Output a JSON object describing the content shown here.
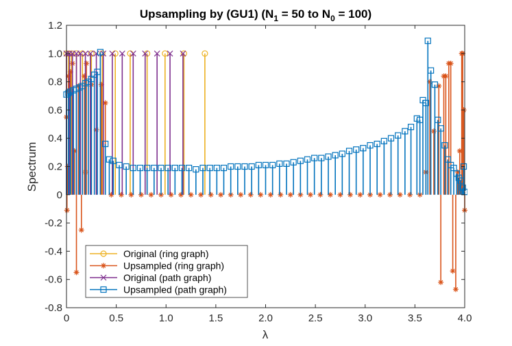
{
  "chart_data": {
    "type": "stem",
    "title": "Upsampling by (GU1) (N",
    "title_sub1": "1",
    "title_mid": " = 50 to N",
    "title_sub2": "0",
    "title_end": " = 100)",
    "xlabel": "λ",
    "ylabel": "Spectrum",
    "xlim": [
      0,
      4
    ],
    "ylim": [
      -0.8,
      1.2
    ],
    "xticks": [
      0,
      0.5,
      1,
      1.5,
      2,
      2.5,
      3,
      3.5,
      4
    ],
    "yticks": [
      -0.8,
      -0.6,
      -0.4,
      -0.2,
      0,
      0.2,
      0.4,
      0.6,
      0.8,
      1.0,
      1.2
    ],
    "xtick_labels": [
      "0",
      "0.5",
      "1.0",
      "1.5",
      "2.0",
      "2.5",
      "3.0",
      "3.5",
      "4.0"
    ],
    "ytick_labels": [
      "-0.8",
      "-0.6",
      "-0.4",
      "-0.2",
      "0",
      "0.2",
      "0.4",
      "0.6",
      "0.8",
      "1.0",
      "1.2"
    ],
    "legend_position": "bottom-left",
    "series": [
      {
        "name": "Original (ring graph)",
        "color": "#EDB120",
        "marker": "circle",
        "points": [
          [
            0.0,
            1.0
          ],
          [
            0.02,
            1.0
          ],
          [
            0.05,
            1.0
          ],
          [
            0.1,
            1.0
          ],
          [
            0.16,
            1.0
          ],
          [
            0.25,
            1.0
          ],
          [
            0.36,
            1.0
          ],
          [
            0.49,
            1.0
          ],
          [
            0.64,
            1.0
          ],
          [
            0.81,
            1.0
          ],
          [
            0.99,
            1.0
          ],
          [
            1.18,
            1.0
          ],
          [
            1.39,
            1.0
          ]
        ]
      },
      {
        "name": "Upsampled (ring graph)",
        "color": "#D95319",
        "marker": "asterisk",
        "points": [
          [
            0.0,
            0.55
          ],
          [
            0.005,
            -0.11
          ],
          [
            0.012,
            0.2
          ],
          [
            0.02,
            0.84
          ],
          [
            0.04,
            0.87
          ],
          [
            0.06,
            0.93
          ],
          [
            0.08,
            0.31
          ],
          [
            0.1,
            -0.55
          ],
          [
            0.12,
            0.77
          ],
          [
            0.15,
            -0.25
          ],
          [
            0.18,
            0.84
          ],
          [
            0.2,
            0.93
          ],
          [
            0.19,
            0.16
          ],
          [
            0.25,
            0.78
          ],
          [
            0.3,
            0.46
          ],
          [
            0.35,
            0.78
          ],
          [
            0.39,
            0.65
          ],
          [
            0.45,
            0.0
          ],
          [
            0.55,
            0.0
          ],
          [
            0.65,
            0.0
          ],
          [
            0.75,
            0.0
          ],
          [
            0.85,
            0.0
          ],
          [
            0.95,
            0.0
          ],
          [
            1.05,
            0.0
          ],
          [
            1.15,
            0.0
          ],
          [
            1.25,
            0.0
          ],
          [
            1.35,
            0.0
          ],
          [
            1.45,
            0.0
          ],
          [
            1.55,
            0.0
          ],
          [
            1.65,
            0.0
          ],
          [
            1.75,
            0.0
          ],
          [
            1.85,
            0.0
          ],
          [
            1.95,
            0.0
          ],
          [
            2.05,
            0.0
          ],
          [
            2.15,
            0.0
          ],
          [
            2.25,
            0.0
          ],
          [
            2.35,
            0.0
          ],
          [
            2.45,
            0.0
          ],
          [
            2.55,
            0.0
          ],
          [
            2.65,
            0.0
          ],
          [
            2.75,
            0.0
          ],
          [
            2.85,
            0.0
          ],
          [
            2.95,
            0.0
          ],
          [
            3.05,
            0.0
          ],
          [
            3.15,
            0.0
          ],
          [
            3.25,
            0.0
          ],
          [
            3.35,
            0.0
          ],
          [
            3.45,
            0.0
          ],
          [
            3.55,
            0.0
          ],
          [
            3.61,
            0.16
          ],
          [
            3.65,
            0.8
          ],
          [
            3.69,
            0.45
          ],
          [
            3.74,
            0.77
          ],
          [
            3.76,
            -0.62
          ],
          [
            3.79,
            0.84
          ],
          [
            3.81,
            0.84
          ],
          [
            3.84,
            0.93
          ],
          [
            3.86,
            0.93
          ],
          [
            3.88,
            -0.54
          ],
          [
            3.91,
            -0.67
          ],
          [
            3.93,
            0.16
          ],
          [
            3.95,
            0.31
          ],
          [
            3.97,
            1.0
          ],
          [
            3.98,
            1.0
          ],
          [
            3.99,
            0.6
          ],
          [
            4.0,
            -0.11
          ]
        ]
      },
      {
        "name": "Original (path graph)",
        "color": "#7E2F8E",
        "marker": "x",
        "points": [
          [
            0.0,
            1.0
          ],
          [
            0.03,
            1.0
          ],
          [
            0.06,
            1.0
          ],
          [
            0.1,
            1.0
          ],
          [
            0.14,
            1.0
          ],
          [
            0.19,
            1.0
          ],
          [
            0.24,
            1.0
          ],
          [
            0.3,
            1.0
          ],
          [
            0.37,
            1.0
          ],
          [
            0.46,
            1.0
          ],
          [
            0.56,
            1.0
          ],
          [
            0.67,
            1.0
          ],
          [
            0.79,
            1.0
          ],
          [
            0.91,
            1.0
          ],
          [
            1.04,
            1.0
          ],
          [
            1.17,
            1.0
          ]
        ]
      },
      {
        "name": "Upsampled (path graph)",
        "color": "#0072BD",
        "marker": "square",
        "points": [
          [
            0.0,
            0.71
          ],
          [
            0.02,
            0.72
          ],
          [
            0.04,
            0.73
          ],
          [
            0.07,
            0.74
          ],
          [
            0.1,
            0.75
          ],
          [
            0.13,
            0.76
          ],
          [
            0.16,
            0.77
          ],
          [
            0.19,
            0.79
          ],
          [
            0.22,
            0.8
          ],
          [
            0.25,
            0.82
          ],
          [
            0.28,
            0.85
          ],
          [
            0.31,
            0.87
          ],
          [
            0.34,
            1.01
          ],
          [
            0.39,
            0.36
          ],
          [
            0.43,
            0.25
          ],
          [
            0.47,
            0.24
          ],
          [
            0.53,
            0.21
          ],
          [
            0.6,
            0.2
          ],
          [
            0.67,
            0.19
          ],
          [
            0.74,
            0.19
          ],
          [
            0.81,
            0.19
          ],
          [
            0.88,
            0.19
          ],
          [
            0.95,
            0.19
          ],
          [
            1.02,
            0.19
          ],
          [
            1.09,
            0.19
          ],
          [
            1.16,
            0.19
          ],
          [
            1.23,
            0.19
          ],
          [
            1.3,
            0.18
          ],
          [
            1.37,
            0.19
          ],
          [
            1.44,
            0.19
          ],
          [
            1.51,
            0.19
          ],
          [
            1.58,
            0.19
          ],
          [
            1.65,
            0.2
          ],
          [
            1.72,
            0.2
          ],
          [
            1.79,
            0.2
          ],
          [
            1.86,
            0.2
          ],
          [
            1.93,
            0.21
          ],
          [
            2.0,
            0.21
          ],
          [
            2.07,
            0.21
          ],
          [
            2.14,
            0.22
          ],
          [
            2.21,
            0.22
          ],
          [
            2.28,
            0.23
          ],
          [
            2.35,
            0.24
          ],
          [
            2.42,
            0.25
          ],
          [
            2.49,
            0.26
          ],
          [
            2.56,
            0.26
          ],
          [
            2.63,
            0.27
          ],
          [
            2.7,
            0.28
          ],
          [
            2.77,
            0.29
          ],
          [
            2.84,
            0.31
          ],
          [
            2.91,
            0.32
          ],
          [
            2.98,
            0.33
          ],
          [
            3.05,
            0.35
          ],
          [
            3.12,
            0.36
          ],
          [
            3.19,
            0.38
          ],
          [
            3.26,
            0.4
          ],
          [
            3.33,
            0.42
          ],
          [
            3.4,
            0.45
          ],
          [
            3.46,
            0.48
          ],
          [
            3.52,
            0.54
          ],
          [
            3.55,
            0.53
          ],
          [
            3.58,
            0.67
          ],
          [
            3.61,
            0.65
          ],
          [
            3.63,
            1.09
          ],
          [
            3.66,
            0.88
          ],
          [
            3.7,
            0.78
          ],
          [
            3.73,
            0.53
          ],
          [
            3.76,
            0.47
          ],
          [
            3.8,
            0.35
          ],
          [
            3.83,
            0.25
          ],
          [
            3.86,
            0.21
          ],
          [
            3.89,
            0.19
          ],
          [
            3.92,
            0.15
          ],
          [
            3.94,
            0.12
          ],
          [
            3.96,
            0.1
          ],
          [
            3.98,
            0.05
          ],
          [
            3.99,
            0.2
          ],
          [
            4.0,
            0.02
          ]
        ]
      }
    ]
  }
}
